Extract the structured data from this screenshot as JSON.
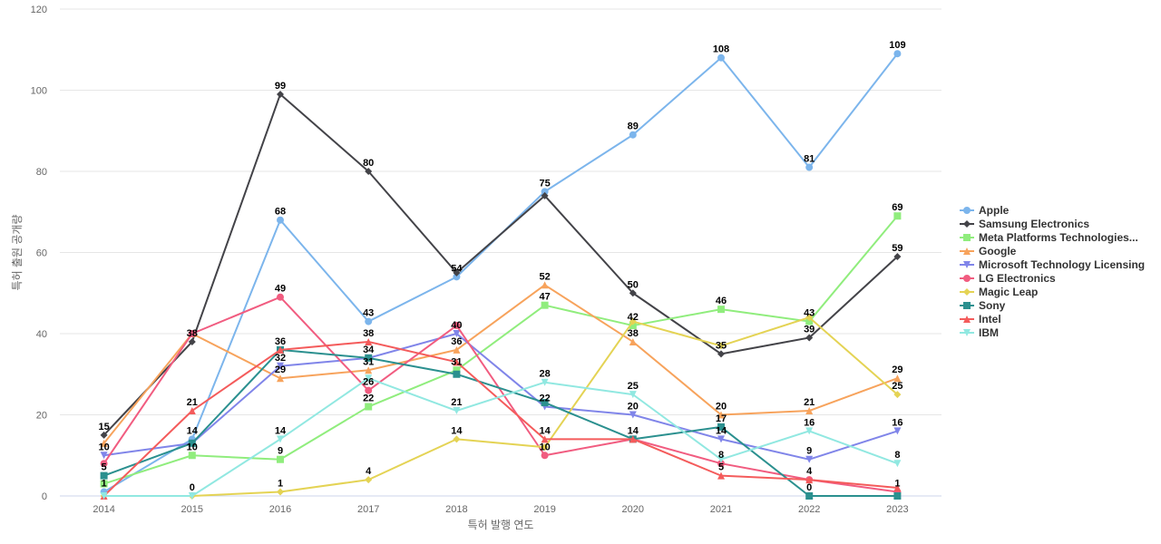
{
  "chart_data": {
    "type": "line",
    "xlabel": "특허 발행 연도",
    "ylabel": "특허 출원 공개량",
    "ylim": [
      0,
      120
    ],
    "yticks": [
      0,
      20,
      40,
      60,
      80,
      100,
      120
    ],
    "grid": true,
    "legend_position": "right",
    "categories": [
      "2014",
      "2015",
      "2016",
      "2017",
      "2018",
      "2019",
      "2020",
      "2021",
      "2022",
      "2023"
    ],
    "series": [
      {
        "name": "Apple",
        "color": "#7cb5ec",
        "marker": "circle",
        "values": [
          1,
          14,
          68,
          43,
          54,
          75,
          89,
          108,
          81,
          109
        ]
      },
      {
        "name": "Samsung Electronics",
        "color": "#434348",
        "marker": "diamond",
        "values": [
          15,
          38,
          99,
          80,
          55,
          74,
          50,
          35,
          39,
          59
        ]
      },
      {
        "name": "Meta Platforms Technologies...",
        "color": "#90ed7d",
        "marker": "square",
        "values": [
          3,
          10,
          9,
          22,
          31,
          47,
          42,
          46,
          43,
          69
        ]
      },
      {
        "name": "Google",
        "color": "#f7a35c",
        "marker": "triangle",
        "values": [
          13,
          40,
          29,
          31,
          36,
          52,
          38,
          20,
          21,
          29
        ]
      },
      {
        "name": "Microsoft Technology Licensing",
        "color": "#8085e9",
        "marker": "triangle-down",
        "values": [
          10,
          13,
          32,
          34,
          40,
          22,
          20,
          14,
          9,
          16
        ]
      },
      {
        "name": "LG Electronics",
        "color": "#f15c80",
        "marker": "circle",
        "values": [
          8,
          40,
          49,
          26,
          42,
          10,
          14,
          8,
          4,
          1
        ]
      },
      {
        "name": "Magic Leap",
        "color": "#e4d354",
        "marker": "diamond",
        "values": [
          0,
          0,
          1,
          4,
          14,
          12,
          43,
          37,
          44,
          25
        ]
      },
      {
        "name": "Sony",
        "color": "#2b908f",
        "marker": "square",
        "values": [
          5,
          13,
          36,
          34,
          30,
          23,
          14,
          17,
          0,
          0
        ]
      },
      {
        "name": "Intel",
        "color": "#f45b5b",
        "marker": "triangle",
        "values": [
          0,
          21,
          36,
          38,
          33,
          14,
          14,
          5,
          4,
          2
        ]
      },
      {
        "name": "IBM",
        "color": "#91e8e1",
        "marker": "triangle-down",
        "values": [
          0,
          0,
          14,
          29,
          21,
          28,
          25,
          9,
          16,
          8
        ]
      }
    ],
    "labels": [
      {
        "x": "2014",
        "text": "15",
        "value": 15
      },
      {
        "x": "2014",
        "text": "10",
        "value": 10
      },
      {
        "x": "2014",
        "text": "5",
        "value": 5
      },
      {
        "x": "2014",
        "text": "1",
        "value": 1
      },
      {
        "x": "2015",
        "text": "38",
        "value": 38
      },
      {
        "x": "2015",
        "text": "21",
        "value": 21
      },
      {
        "x": "2015",
        "text": "14",
        "value": 14
      },
      {
        "x": "2015",
        "text": "10",
        "value": 10
      },
      {
        "x": "2015",
        "text": "0",
        "value": 0
      },
      {
        "x": "2016",
        "text": "99",
        "value": 99
      },
      {
        "x": "2016",
        "text": "68",
        "value": 68
      },
      {
        "x": "2016",
        "text": "49",
        "value": 49
      },
      {
        "x": "2016",
        "text": "36",
        "value": 36
      },
      {
        "x": "2016",
        "text": "32",
        "value": 32
      },
      {
        "x": "2016",
        "text": "29",
        "value": 29
      },
      {
        "x": "2016",
        "text": "14",
        "value": 14
      },
      {
        "x": "2016",
        "text": "9",
        "value": 9
      },
      {
        "x": "2016",
        "text": "1",
        "value": 1
      },
      {
        "x": "2017",
        "text": "80",
        "value": 80
      },
      {
        "x": "2017",
        "text": "43",
        "value": 43
      },
      {
        "x": "2017",
        "text": "38",
        "value": 38
      },
      {
        "x": "2017",
        "text": "34",
        "value": 34
      },
      {
        "x": "2017",
        "text": "31",
        "value": 31
      },
      {
        "x": "2017",
        "text": "26",
        "value": 26
      },
      {
        "x": "2017",
        "text": "22",
        "value": 22
      },
      {
        "x": "2017",
        "text": "4",
        "value": 4
      },
      {
        "x": "2018",
        "text": "54",
        "value": 54
      },
      {
        "x": "2018",
        "text": "40",
        "value": 40
      },
      {
        "x": "2018",
        "text": "36",
        "value": 36
      },
      {
        "x": "2018",
        "text": "31",
        "value": 31
      },
      {
        "x": "2018",
        "text": "21",
        "value": 21
      },
      {
        "x": "2018",
        "text": "14",
        "value": 14
      },
      {
        "x": "2019",
        "text": "75",
        "value": 75
      },
      {
        "x": "2019",
        "text": "52",
        "value": 52
      },
      {
        "x": "2019",
        "text": "47",
        "value": 47
      },
      {
        "x": "2019",
        "text": "28",
        "value": 28
      },
      {
        "x": "2019",
        "text": "22",
        "value": 22
      },
      {
        "x": "2019",
        "text": "14",
        "value": 14
      },
      {
        "x": "2019",
        "text": "10",
        "value": 10
      },
      {
        "x": "2020",
        "text": "89",
        "value": 89
      },
      {
        "x": "2020",
        "text": "50",
        "value": 50
      },
      {
        "x": "2020",
        "text": "42",
        "value": 42
      },
      {
        "x": "2020",
        "text": "38",
        "value": 38
      },
      {
        "x": "2020",
        "text": "25",
        "value": 25
      },
      {
        "x": "2020",
        "text": "20",
        "value": 20
      },
      {
        "x": "2020",
        "text": "14",
        "value": 14
      },
      {
        "x": "2021",
        "text": "108",
        "value": 108
      },
      {
        "x": "2021",
        "text": "46",
        "value": 46
      },
      {
        "x": "2021",
        "text": "35",
        "value": 35
      },
      {
        "x": "2021",
        "text": "20",
        "value": 20
      },
      {
        "x": "2021",
        "text": "17",
        "value": 17
      },
      {
        "x": "2021",
        "text": "14",
        "value": 14
      },
      {
        "x": "2021",
        "text": "8",
        "value": 8
      },
      {
        "x": "2021",
        "text": "5",
        "value": 5
      },
      {
        "x": "2022",
        "text": "81",
        "value": 81
      },
      {
        "x": "2022",
        "text": "43",
        "value": 43
      },
      {
        "x": "2022",
        "text": "39",
        "value": 39
      },
      {
        "x": "2022",
        "text": "21",
        "value": 21
      },
      {
        "x": "2022",
        "text": "16",
        "value": 16
      },
      {
        "x": "2022",
        "text": "9",
        "value": 9
      },
      {
        "x": "2022",
        "text": "4",
        "value": 4
      },
      {
        "x": "2022",
        "text": "0",
        "value": 0
      },
      {
        "x": "2023",
        "text": "109",
        "value": 109
      },
      {
        "x": "2023",
        "text": "69",
        "value": 69
      },
      {
        "x": "2023",
        "text": "59",
        "value": 59
      },
      {
        "x": "2023",
        "text": "29",
        "value": 29
      },
      {
        "x": "2023",
        "text": "25",
        "value": 25
      },
      {
        "x": "2023",
        "text": "16",
        "value": 16
      },
      {
        "x": "2023",
        "text": "8",
        "value": 8
      },
      {
        "x": "2023",
        "text": "1",
        "value": 1
      }
    ]
  }
}
